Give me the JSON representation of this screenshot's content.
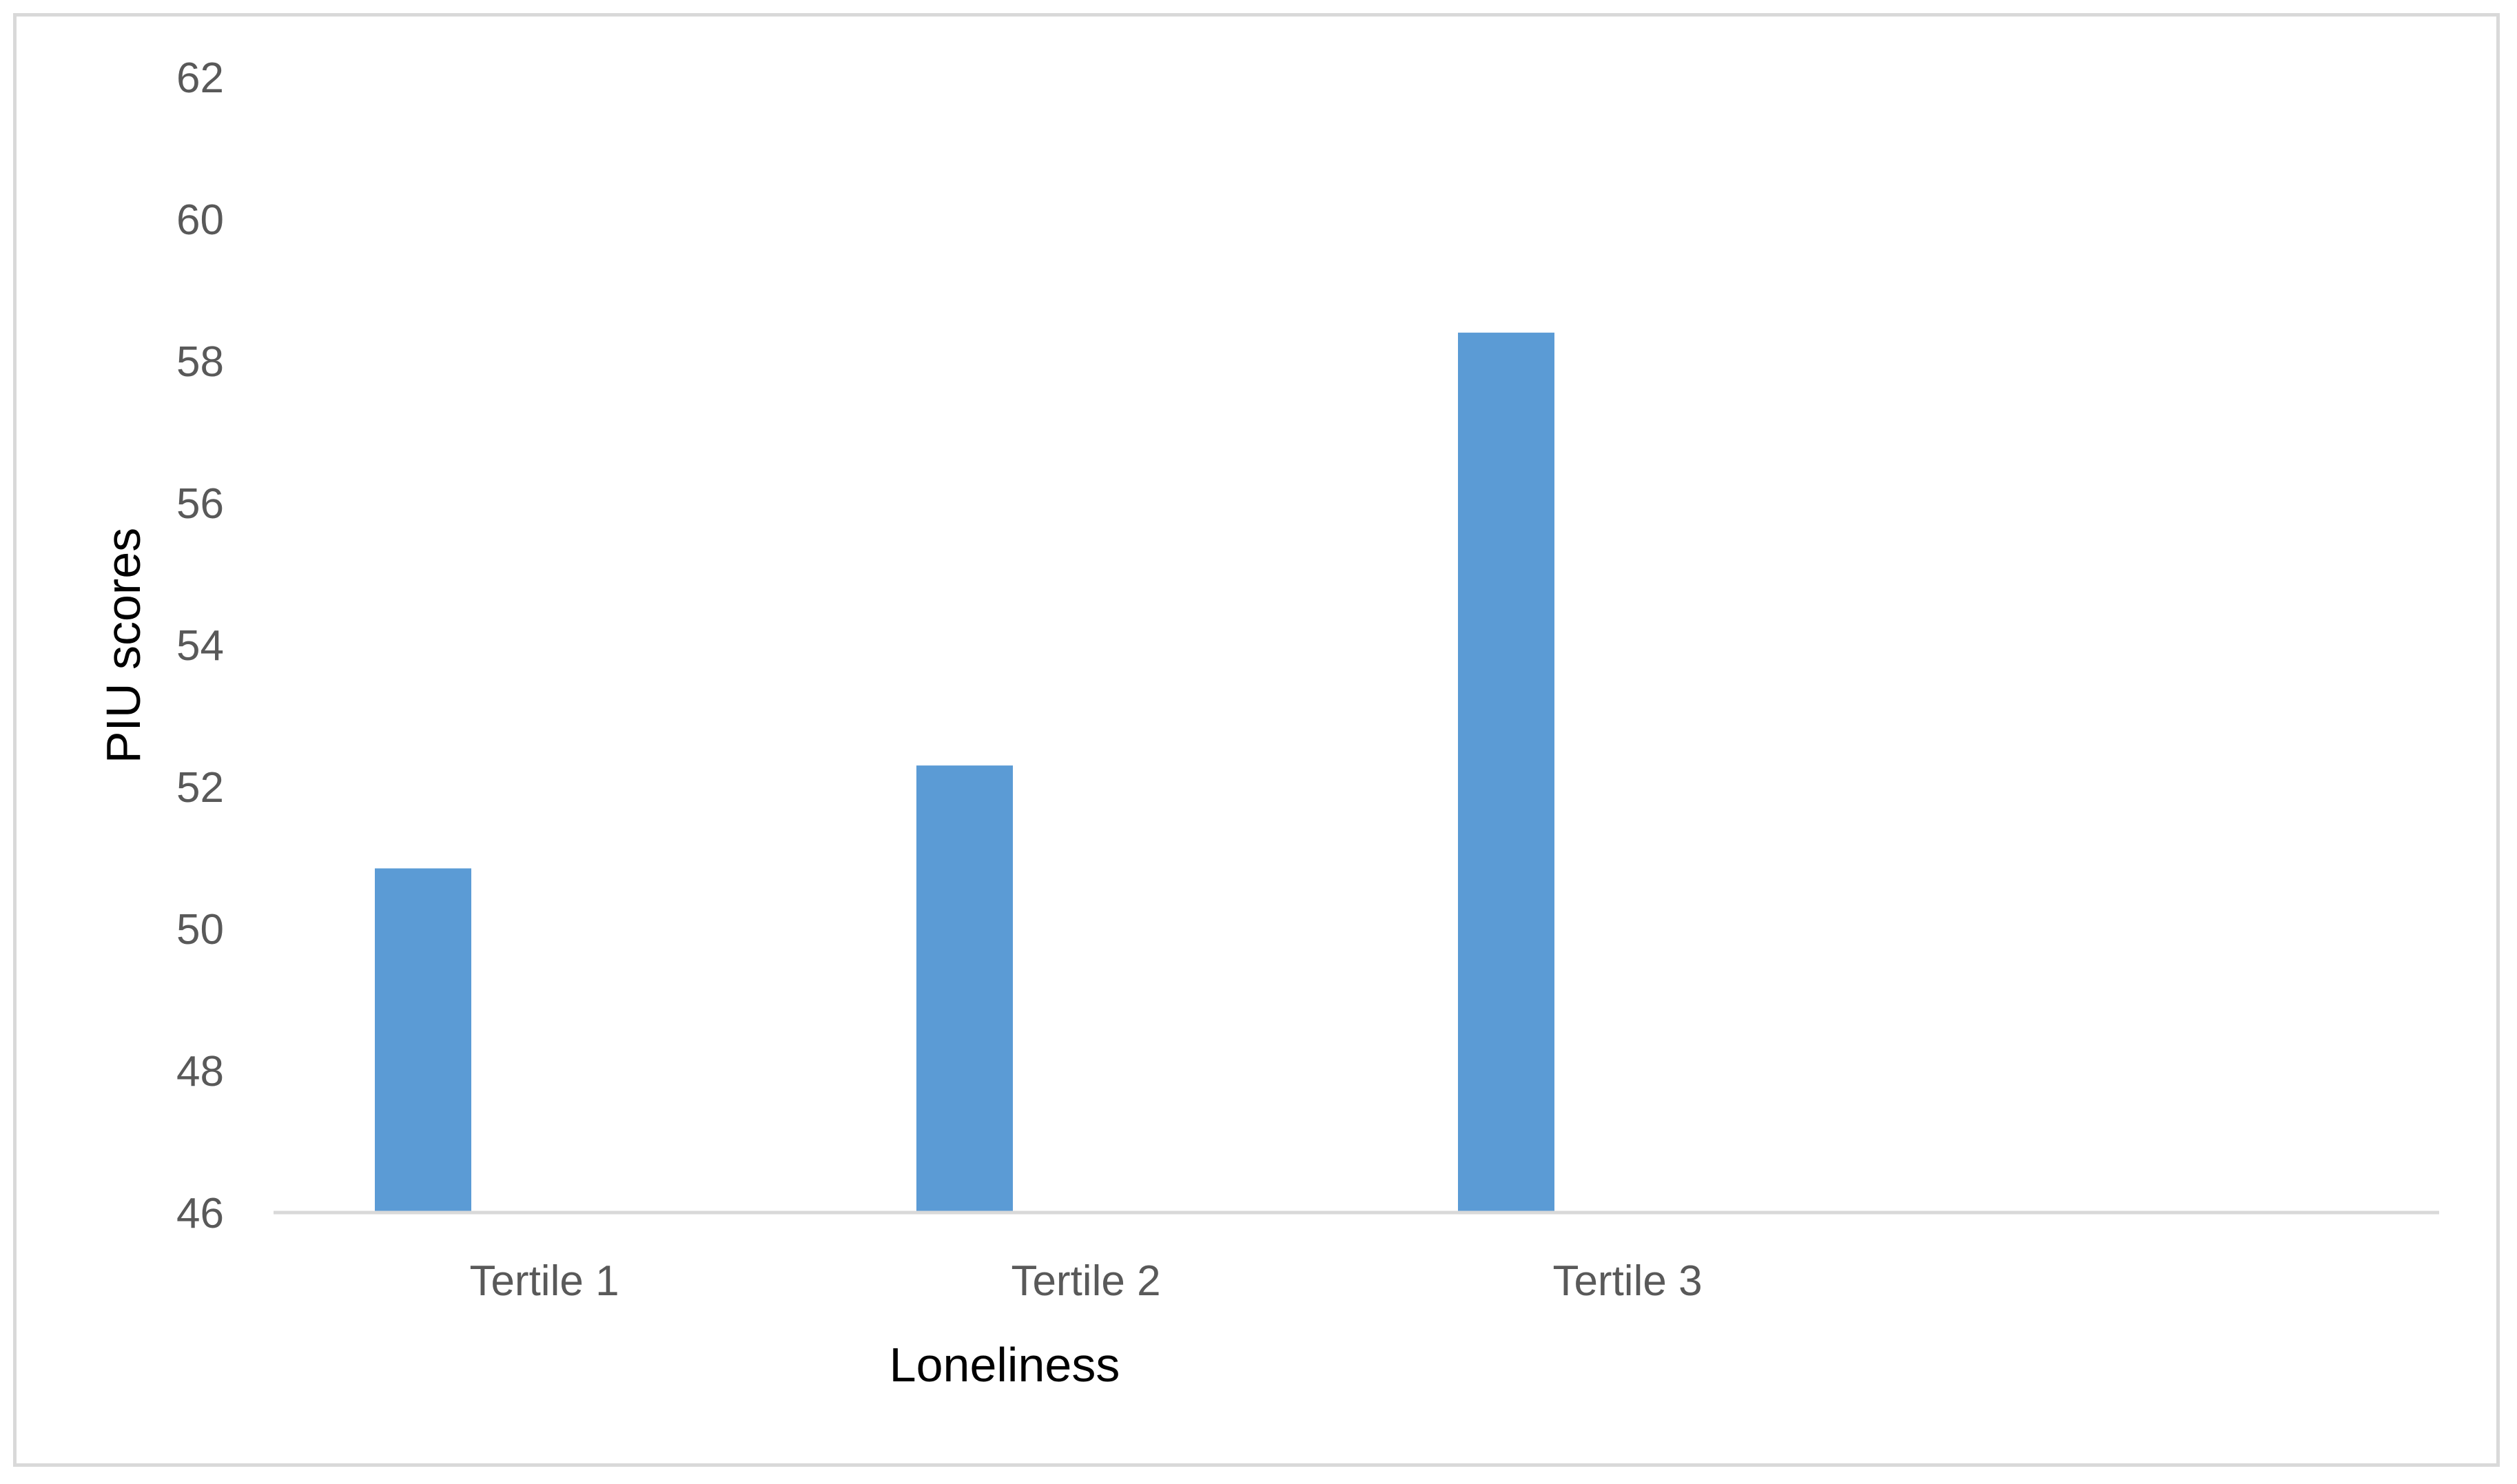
{
  "chart_data": {
    "type": "bar",
    "title": "",
    "xlabel": "Loneliness",
    "ylabel": "PIU scores",
    "categories": [
      "Tertile 1",
      "Tertile 2",
      "Tertile 3"
    ],
    "series": [
      {
        "values": [
          50.85,
          52.3,
          58.4
        ]
      }
    ],
    "ylim": [
      46,
      62
    ],
    "yticks": [
      46,
      48,
      50,
      52,
      54,
      56,
      58,
      60,
      62
    ],
    "grid": false,
    "legend": "none",
    "bar_color": "#5b9bd5",
    "axis_color": "#d9d9d9",
    "tick_label_color": "#595959"
  }
}
